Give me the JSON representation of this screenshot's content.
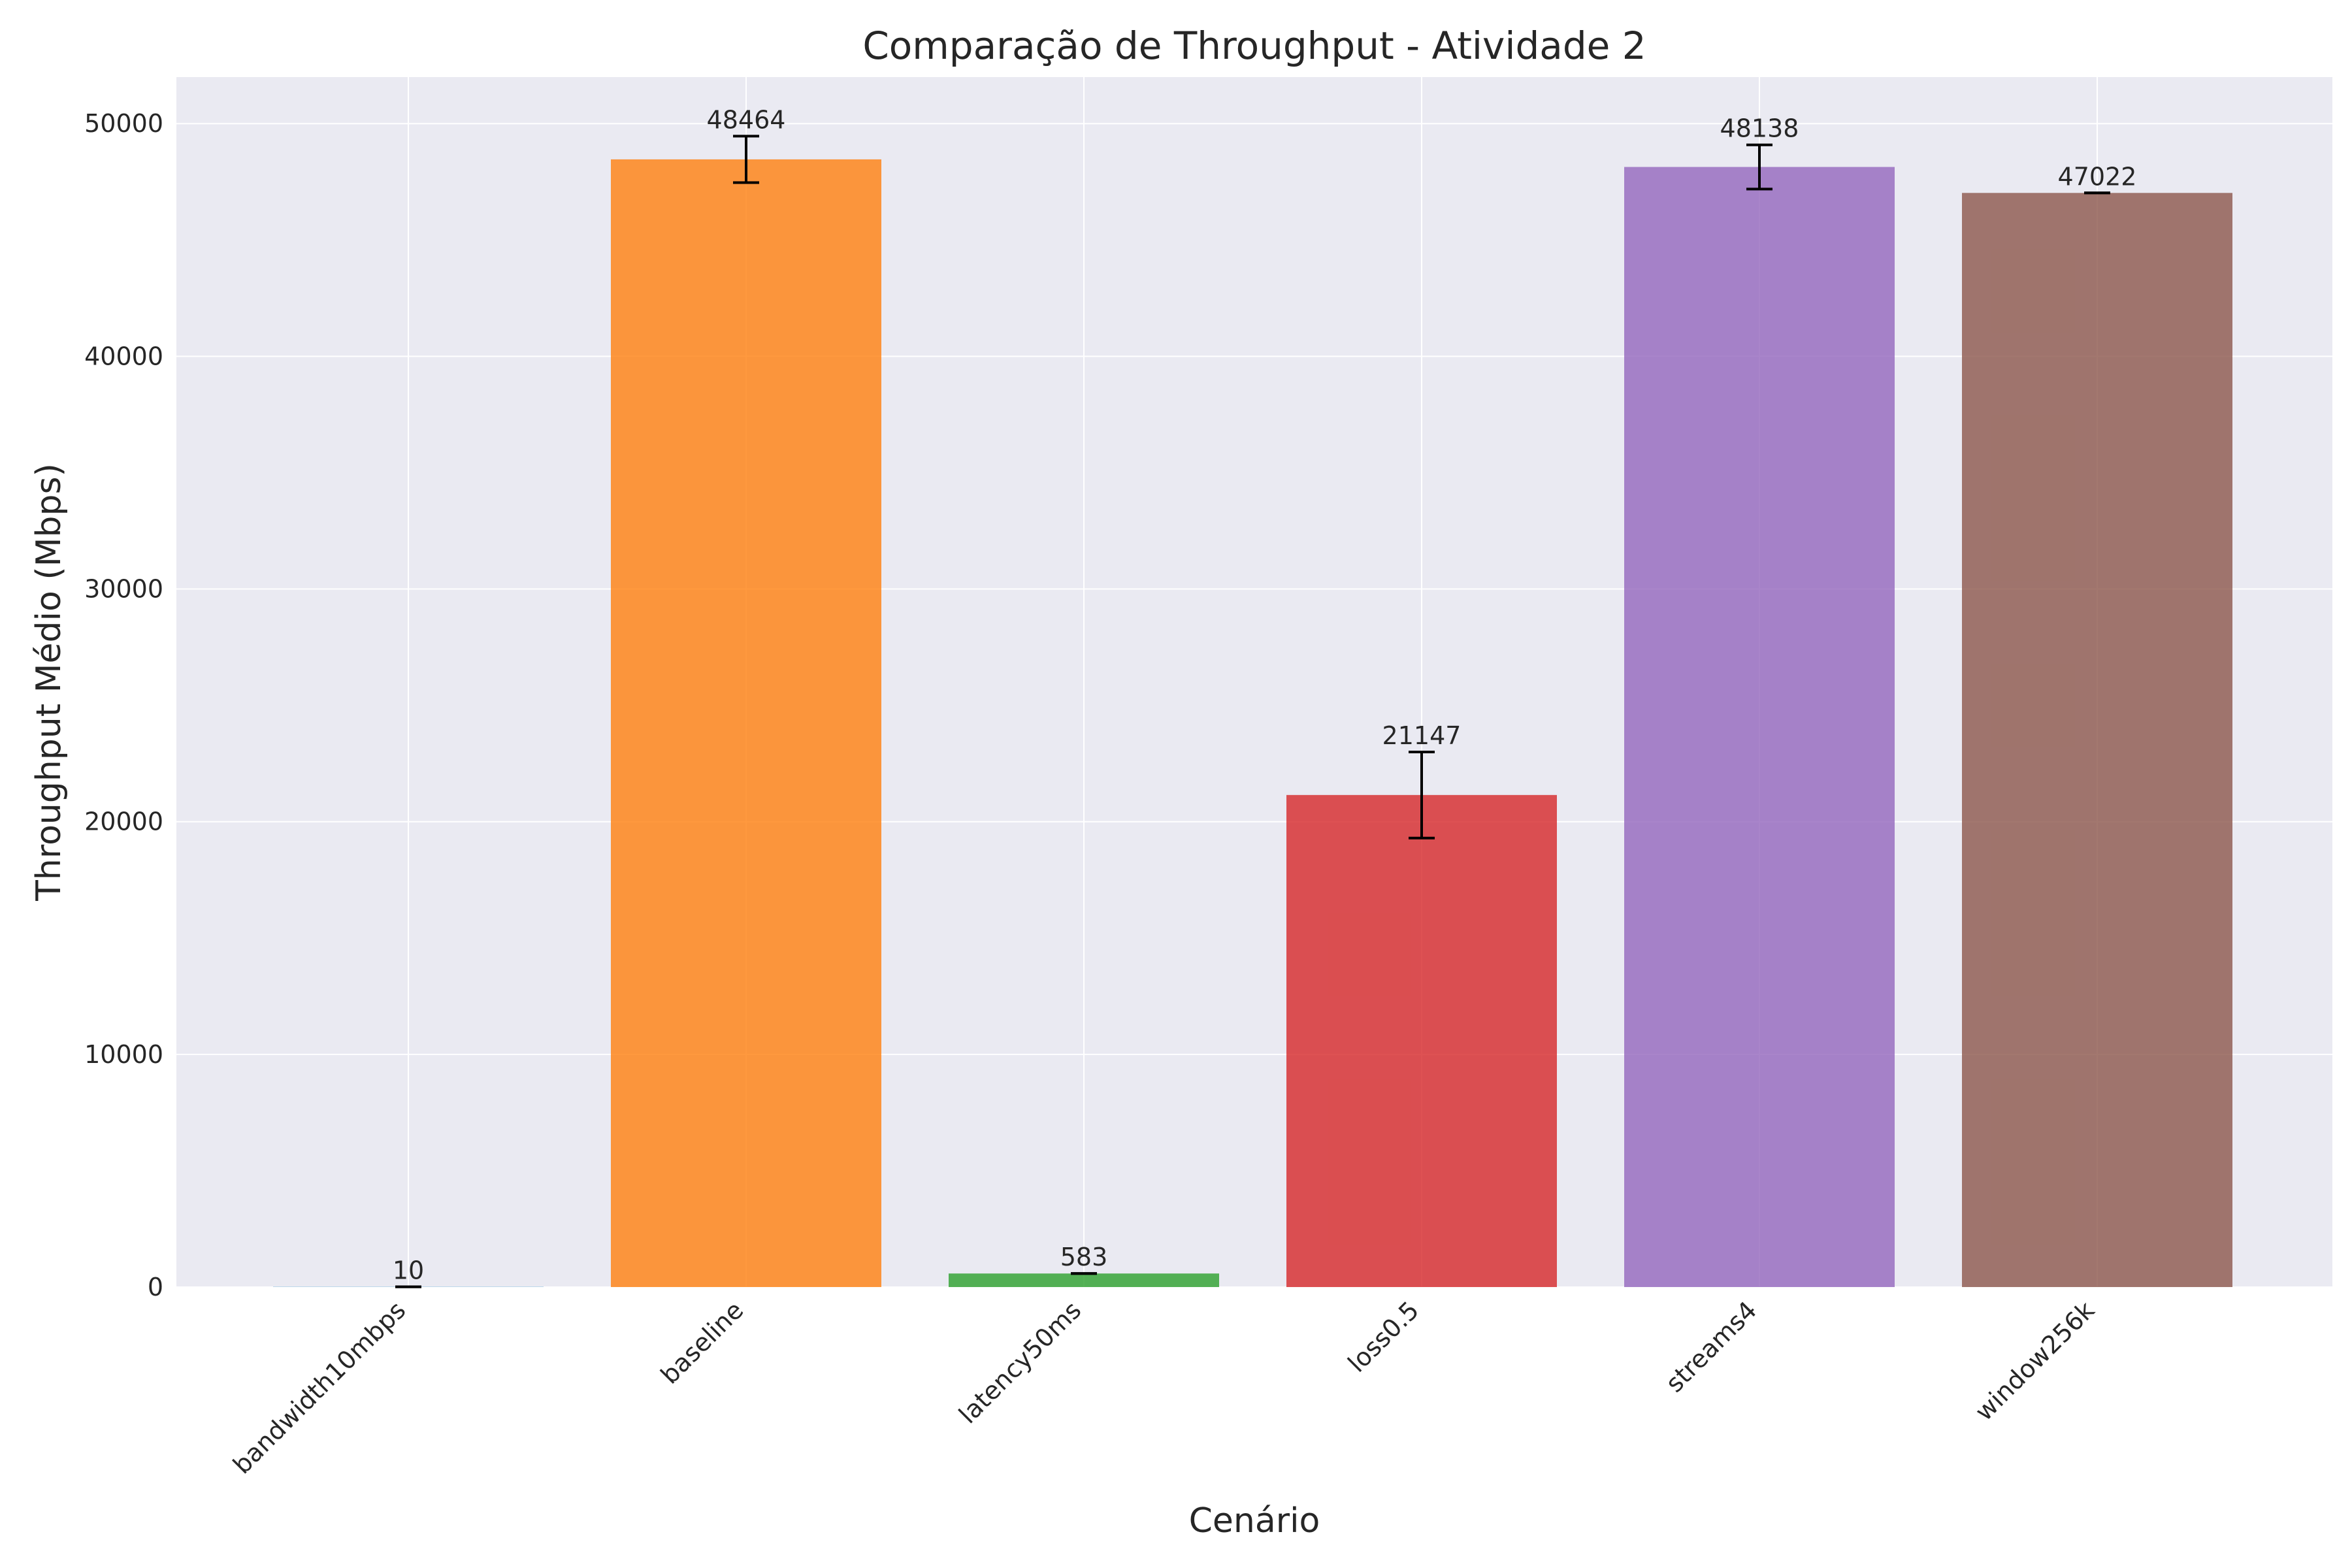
{
  "chart_data": {
    "type": "bar",
    "title": "Comparação de Throughput - Atividade 2",
    "xlabel": "Cenário",
    "ylabel": "Throughput Médio (Mbps)",
    "ylim": [
      0,
      52000
    ],
    "yticks": [
      0,
      10000,
      20000,
      30000,
      40000,
      50000
    ],
    "grid": true,
    "categories": [
      "bandwidth10mbps",
      "baseline",
      "latency50ms",
      "loss0.5",
      "streams4",
      "window256k"
    ],
    "values": [
      10,
      48464,
      583,
      21147,
      48138,
      47022
    ],
    "value_labels": [
      "10",
      "48464",
      "583",
      "21147",
      "48138",
      "47022"
    ],
    "errors": [
      0,
      1000,
      0,
      1850,
      950,
      0
    ],
    "colors": [
      "#1f77b4",
      "#ff7f0e",
      "#2ca02c",
      "#d62728",
      "#9467bd",
      "#8c564b"
    ]
  }
}
